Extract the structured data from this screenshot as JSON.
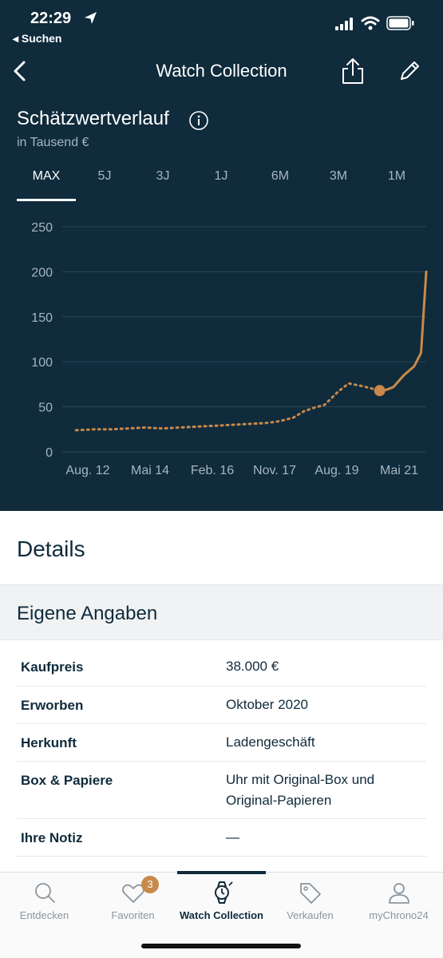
{
  "status_bar": {
    "time": "22:29",
    "back_app": "◂ Suchen"
  },
  "nav": {
    "title": "Watch Collection"
  },
  "chart_header": {
    "title": "Schätzwertverlauf",
    "subtitle": "in Tausend €"
  },
  "ranges": [
    {
      "label": "MAX",
      "active": true
    },
    {
      "label": "5J",
      "active": false
    },
    {
      "label": "3J",
      "active": false
    },
    {
      "label": "1J",
      "active": false
    },
    {
      "label": "6M",
      "active": false
    },
    {
      "label": "3M",
      "active": false
    },
    {
      "label": "1M",
      "active": false
    }
  ],
  "chart_data": {
    "type": "line",
    "title": "Schätzwertverlauf",
    "ylabel": "in Tausend €",
    "ylim": [
      0,
      250
    ],
    "yticks": [
      "0",
      "50",
      "100",
      "150",
      "200",
      "250"
    ],
    "x_tick_labels": [
      "Aug. 12",
      "Mai 14",
      "Feb. 16",
      "Nov. 17",
      "Aug. 19",
      "Mai 21"
    ],
    "grid": true,
    "series": [
      {
        "name": "",
        "color": "#c8894a",
        "x": [
          2012.0,
          2012.5,
          2013.0,
          2013.5,
          2014.0,
          2014.5,
          2015.0,
          2015.5,
          2016.0,
          2016.5,
          2017.0,
          2017.5,
          2017.9,
          2018.3,
          2018.6,
          2018.9,
          2019.2,
          2019.6,
          2019.9,
          2020.3,
          2020.6,
          2020.8,
          2021.0,
          2021.2,
          2021.5,
          2021.8,
          2022.0,
          2022.15
        ],
        "y": [
          24,
          25,
          25,
          26,
          27,
          26,
          27,
          28,
          29,
          30,
          31,
          32,
          34,
          38,
          45,
          49,
          52,
          67,
          76,
          73,
          70,
          68,
          69,
          72,
          85,
          95,
          110,
          200
        ],
        "dotted_until": 2020.8
      }
    ],
    "highlight_point": {
      "x": 2020.8,
      "y": 68
    }
  },
  "details": {
    "title": "Details",
    "section_title": "Eigene Angaben",
    "rows": [
      {
        "label": "Kaufpreis",
        "value": "38.000 €"
      },
      {
        "label": "Erworben",
        "value": "Oktober 2020"
      },
      {
        "label": "Herkunft",
        "value": "Ladengeschäft"
      },
      {
        "label": "Box & Papiere",
        "value": "Uhr mit Original-Box und Original-Papieren"
      },
      {
        "label": "Ihre Notiz",
        "value": "—"
      }
    ]
  },
  "tabbar": {
    "items": [
      {
        "label": "Entdecken",
        "icon": "search-icon"
      },
      {
        "label": "Favoriten",
        "icon": "heart-icon",
        "badge": "3"
      },
      {
        "label": "Watch Collection",
        "icon": "watch-icon",
        "active": true
      },
      {
        "label": "Verkaufen",
        "icon": "tag-icon"
      },
      {
        "label": "myChrono24",
        "icon": "user-icon"
      }
    ]
  },
  "colors": {
    "navy": "#0f2b3c",
    "accent": "#c8894a",
    "muted": "#a7b6c0"
  }
}
